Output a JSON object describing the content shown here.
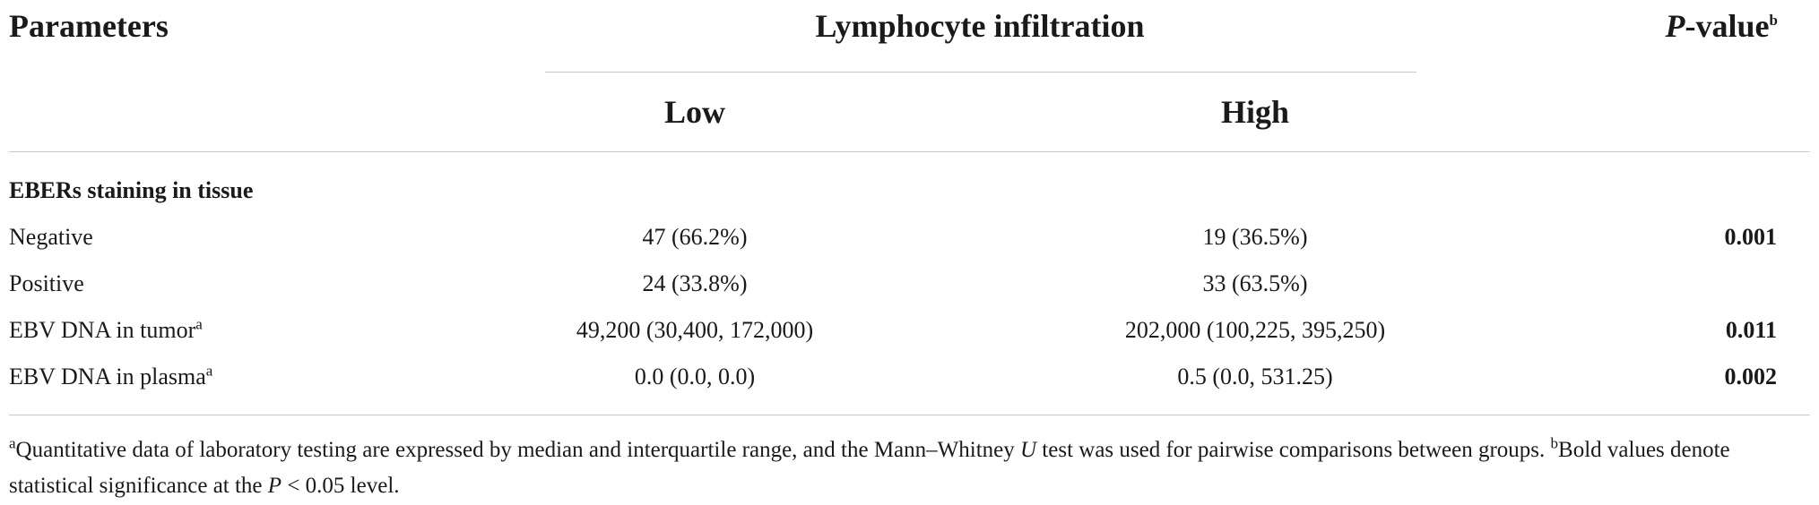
{
  "table": {
    "header": {
      "parameters": "Parameters",
      "group": "Lymphocyte infiltration",
      "pvalue_italic": "P",
      "pvalue_rest": "-value",
      "pvalue_sup": "b",
      "low": "Low",
      "high": "High"
    },
    "section_label": "EBERs staining in tissue",
    "rows": [
      {
        "label": "Negative",
        "sup": "",
        "low": "47 (66.2%)",
        "high": "19 (36.5%)",
        "p": "0.001"
      },
      {
        "label": "Positive",
        "sup": "",
        "low": "24 (33.8%)",
        "high": "33 (63.5%)",
        "p": ""
      },
      {
        "label": "EBV DNA in tumor",
        "sup": "a",
        "low": "49,200 (30,400, 172,000)",
        "high": "202,000 (100,225, 395,250)",
        "p": "0.011"
      },
      {
        "label": "EBV DNA in plasma",
        "sup": "a",
        "low": "0.0 (0.0, 0.0)",
        "high": "0.5 (0.0, 531.25)",
        "p": "0.002"
      }
    ]
  },
  "footnote": {
    "a_sup": "a",
    "a_text_1": "Quantitative data of laboratory testing are expressed by median and interquartile range, and the Mann–Whitney ",
    "a_italic": "U",
    "a_text_2": " test was used for pairwise comparisons between groups. ",
    "b_sup": "b",
    "b_text_1": "Bold values denote statistical significance at the ",
    "b_italic": "P",
    "b_text_2": " < 0.05 level."
  }
}
